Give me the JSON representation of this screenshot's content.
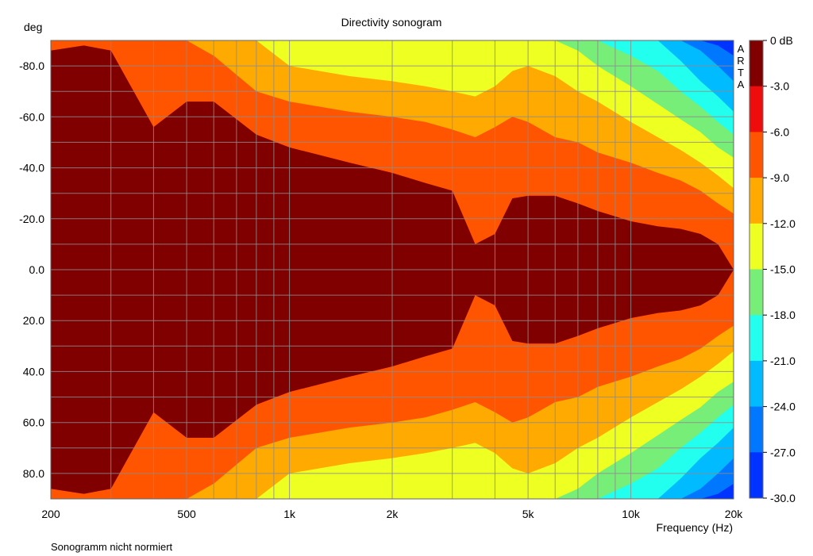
{
  "chart_data": {
    "type": "heatmap",
    "title": "Directivity sonogram",
    "ylabel": "deg",
    "xlabel": "Frequency (Hz)",
    "footnote": "Sonogramm nicht normiert",
    "watermark": "ARTA",
    "x_scale": "log",
    "xlim": [
      200,
      20000
    ],
    "ylim": [
      -90,
      90
    ],
    "y_inverted": true,
    "x_ticks": [
      "200",
      "500",
      "1k",
      "2k",
      "5k",
      "10k",
      "20k"
    ],
    "x_tick_values": [
      200,
      500,
      1000,
      2000,
      5000,
      10000,
      20000
    ],
    "y_ticks": [
      "-80.0",
      "-60.0",
      "-40.0",
      "-20.0",
      "0.0",
      "20.0",
      "40.0",
      "60.0",
      "80.0"
    ],
    "y_tick_values": [
      -80,
      -60,
      -40,
      -20,
      0,
      20,
      40,
      60,
      80
    ],
    "grid": true,
    "colorbar": {
      "labels": [
        "0 dB",
        "-3.0",
        "-6.0",
        "-9.0",
        "-12.0",
        "-15.0",
        "-18.0",
        "-21.0",
        "-24.0",
        "-27.0",
        "-30.0"
      ],
      "colors": [
        "#800000",
        "#ee0c0c",
        "#ff5500",
        "#ffaa00",
        "#eeff22",
        "#77ee77",
        "#22ffee",
        "#00bbff",
        "#0077ff",
        "#0033ff"
      ]
    },
    "beamwidth_deg": {
      "frequencies": [
        200,
        250,
        300,
        400,
        500,
        600,
        800,
        1000,
        1500,
        2000,
        2500,
        3000,
        3500,
        4000,
        4500,
        5000,
        6000,
        7000,
        8000,
        10000,
        12000,
        14000,
        16000,
        18000,
        20000
      ],
      "minus3": [
        86,
        88,
        86,
        56,
        66,
        66,
        53,
        48,
        42,
        38,
        34,
        31,
        10,
        14,
        28,
        29,
        29,
        26,
        23,
        19,
        17,
        16,
        14,
        10,
        0
      ],
      "minus6": [
        90,
        90,
        90,
        90,
        90,
        84,
        70,
        66,
        62,
        60,
        58,
        55,
        52,
        56,
        60,
        58,
        52,
        50,
        46,
        42,
        38,
        35,
        31,
        26,
        22
      ],
      "minus9": [
        90,
        90,
        90,
        90,
        90,
        90,
        90,
        80,
        76,
        74,
        72,
        70,
        68,
        72,
        78,
        80,
        76,
        70,
        66,
        58,
        52,
        47,
        42,
        37,
        32
      ],
      "minus12": [
        90,
        90,
        90,
        90,
        90,
        90,
        90,
        90,
        90,
        90,
        90,
        90,
        90,
        90,
        90,
        90,
        90,
        86,
        80,
        72,
        65,
        59,
        54,
        48,
        44
      ],
      "minus15": [
        90,
        90,
        90,
        90,
        90,
        90,
        90,
        90,
        90,
        90,
        90,
        90,
        90,
        90,
        90,
        90,
        90,
        90,
        90,
        84,
        78,
        70,
        64,
        58,
        53
      ],
      "minus18": [
        90,
        90,
        90,
        90,
        90,
        90,
        90,
        90,
        90,
        90,
        90,
        90,
        90,
        90,
        90,
        90,
        90,
        90,
        90,
        90,
        90,
        82,
        74,
        68,
        62
      ],
      "minus21": [
        90,
        90,
        90,
        90,
        90,
        90,
        90,
        90,
        90,
        90,
        90,
        90,
        90,
        90,
        90,
        90,
        90,
        90,
        90,
        90,
        90,
        90,
        86,
        80,
        74
      ],
      "minus24": [
        90,
        90,
        90,
        90,
        90,
        90,
        90,
        90,
        90,
        90,
        90,
        90,
        90,
        90,
        90,
        90,
        90,
        90,
        90,
        90,
        90,
        90,
        90,
        88,
        84
      ]
    }
  }
}
